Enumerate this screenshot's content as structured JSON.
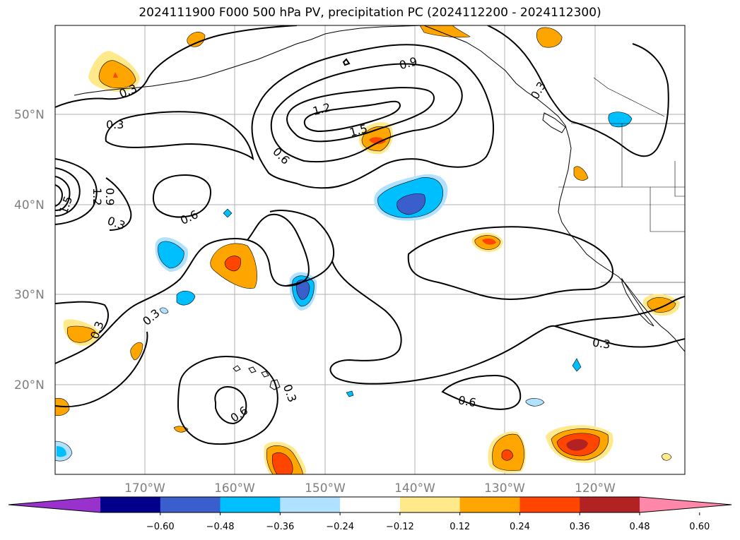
{
  "title": "2024111900 F000 500 hPa PV, precipitation PC (2024112200 - 2024112300)",
  "lat_labels": [
    "50°N",
    "40°N",
    "30°N",
    "20°N"
  ],
  "lon_labels": [
    "170°W",
    "160°W",
    "150°W",
    "140°W",
    "130°W",
    "120°W"
  ],
  "contour_labels": [
    "0.3",
    "0.3",
    "0.3",
    "0.3",
    "0.3",
    "0.3",
    "0.3",
    "0.3",
    "0.6",
    "0.6",
    "0.6",
    "0.6",
    "0.9",
    "1.2",
    "1.5",
    "1.5",
    "1.2",
    "0.9"
  ],
  "colorbar": {
    "ticks": [
      "−0.60",
      "−0.48",
      "−0.36",
      "−0.24",
      "−0.12",
      "0.12",
      "0.24",
      "0.36",
      "0.48",
      "0.60"
    ],
    "colors": [
      "#9932cc",
      "#00008b",
      "#3a5fcd",
      "#00bfff",
      "#b0e2ff",
      "#ffffff",
      "#ffe98a",
      "#ffa500",
      "#ff4500",
      "#b22222",
      "#ff88aa"
    ]
  },
  "colors": {
    "strong_neg": "#3a5fcd",
    "mid_neg": "#00bfff",
    "weak_neg": "#b0e2ff",
    "weak_pos": "#ffe98a",
    "mid_pos": "#ffa500",
    "strong_pos": "#ff4500",
    "very_strong_pos": "#b22222"
  }
}
